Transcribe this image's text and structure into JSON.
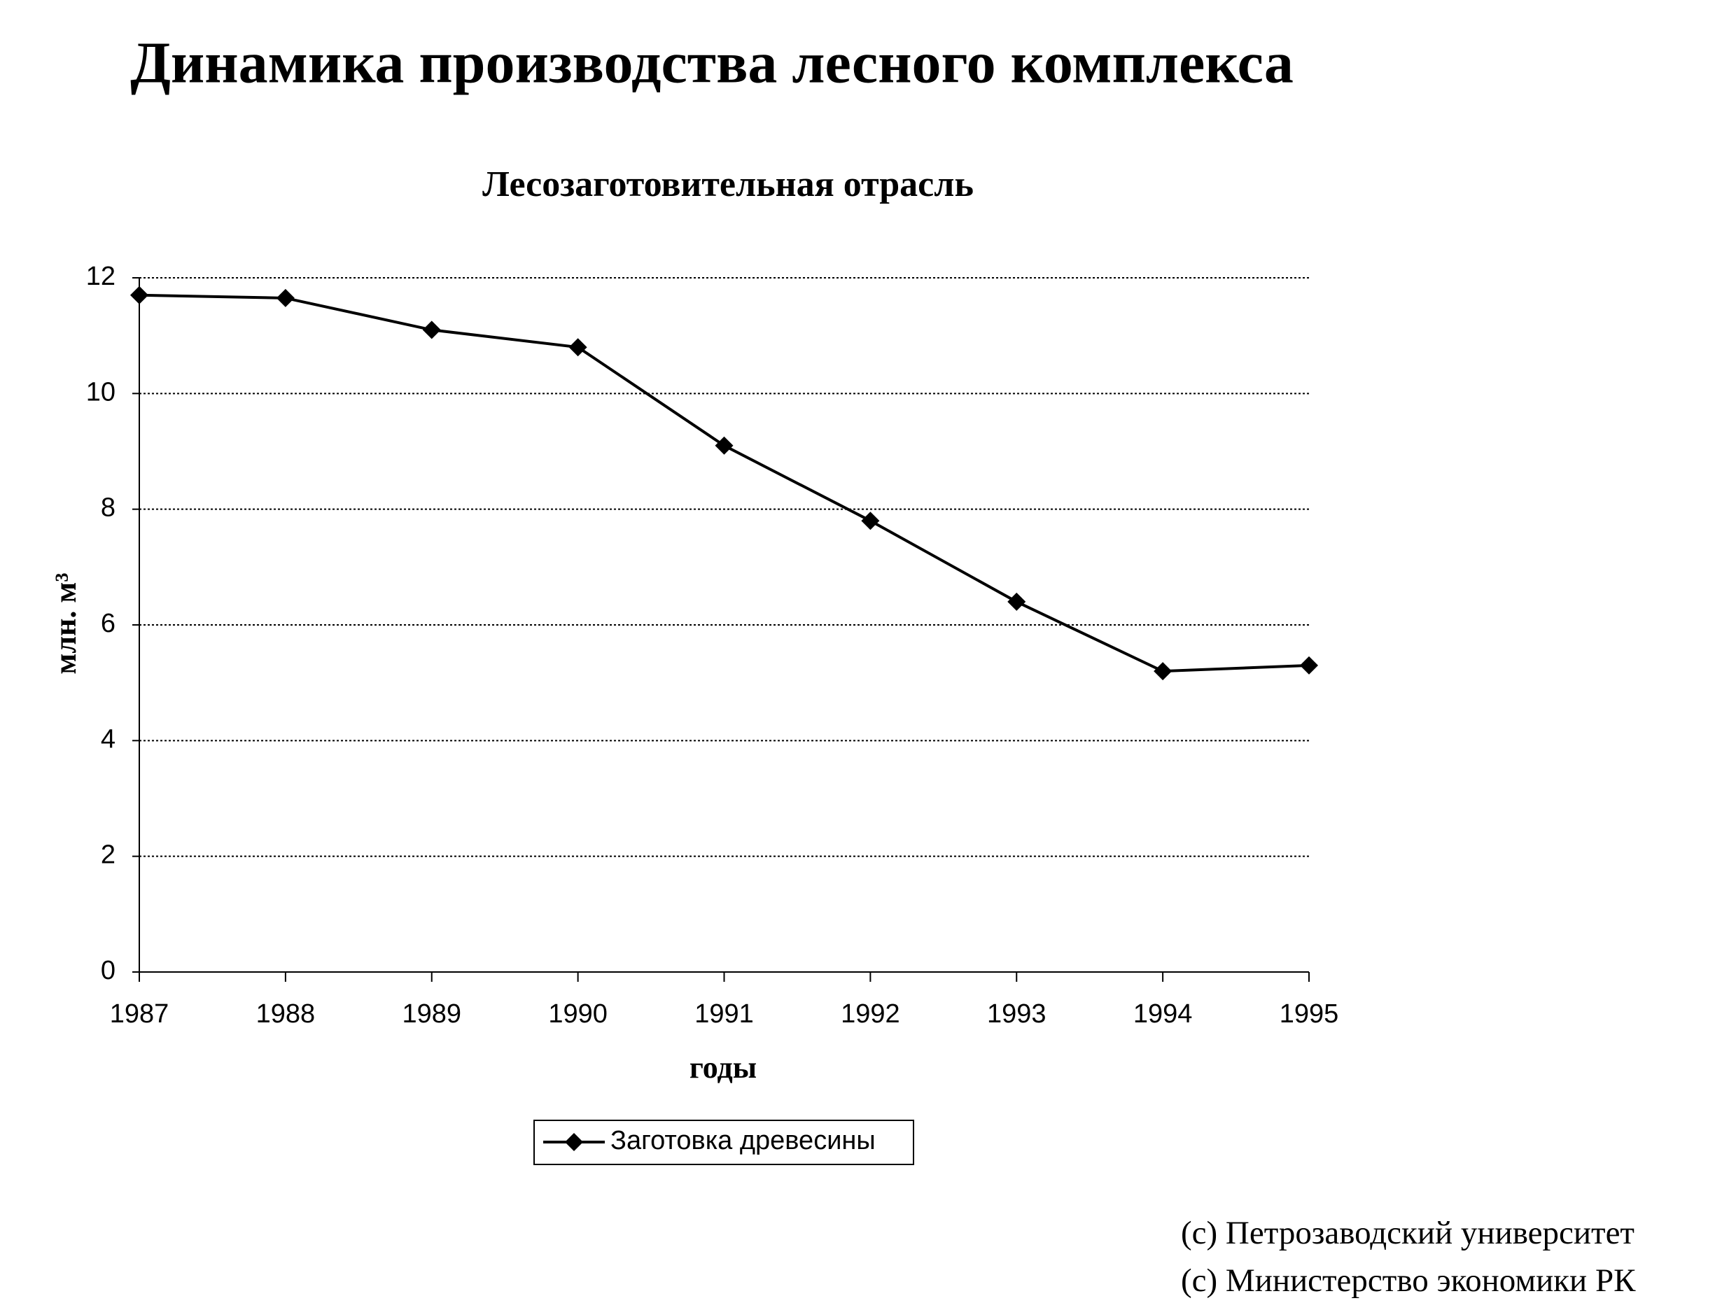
{
  "chart_data": {
    "type": "line",
    "title": "Динамика производства лесного комплекса",
    "subtitle": "Лесозаготовительная отрасль",
    "x_label": "годы",
    "y_label": "млн. м³",
    "x": [
      1987,
      1988,
      1989,
      1990,
      1991,
      1992,
      1993,
      1994,
      1995
    ],
    "series": [
      {
        "name": "Заготовка древесины",
        "color": "#000000",
        "values": [
          11.7,
          11.65,
          11.1,
          10.8,
          9.1,
          7.8,
          6.4,
          5.2,
          5.3
        ]
      }
    ],
    "xlim": [
      1987,
      1995
    ],
    "xticks": [
      1987,
      1988,
      1989,
      1990,
      1991,
      1992,
      1993,
      1994,
      1995
    ],
    "ylim": [
      0,
      12
    ],
    "yticks": [
      0,
      2,
      4,
      6,
      8,
      10,
      12
    ],
    "grid": true,
    "legend": "bottom",
    "footer": [
      "(с) Петрозаводский университет",
      "(с) Министерство экономики РК"
    ]
  }
}
